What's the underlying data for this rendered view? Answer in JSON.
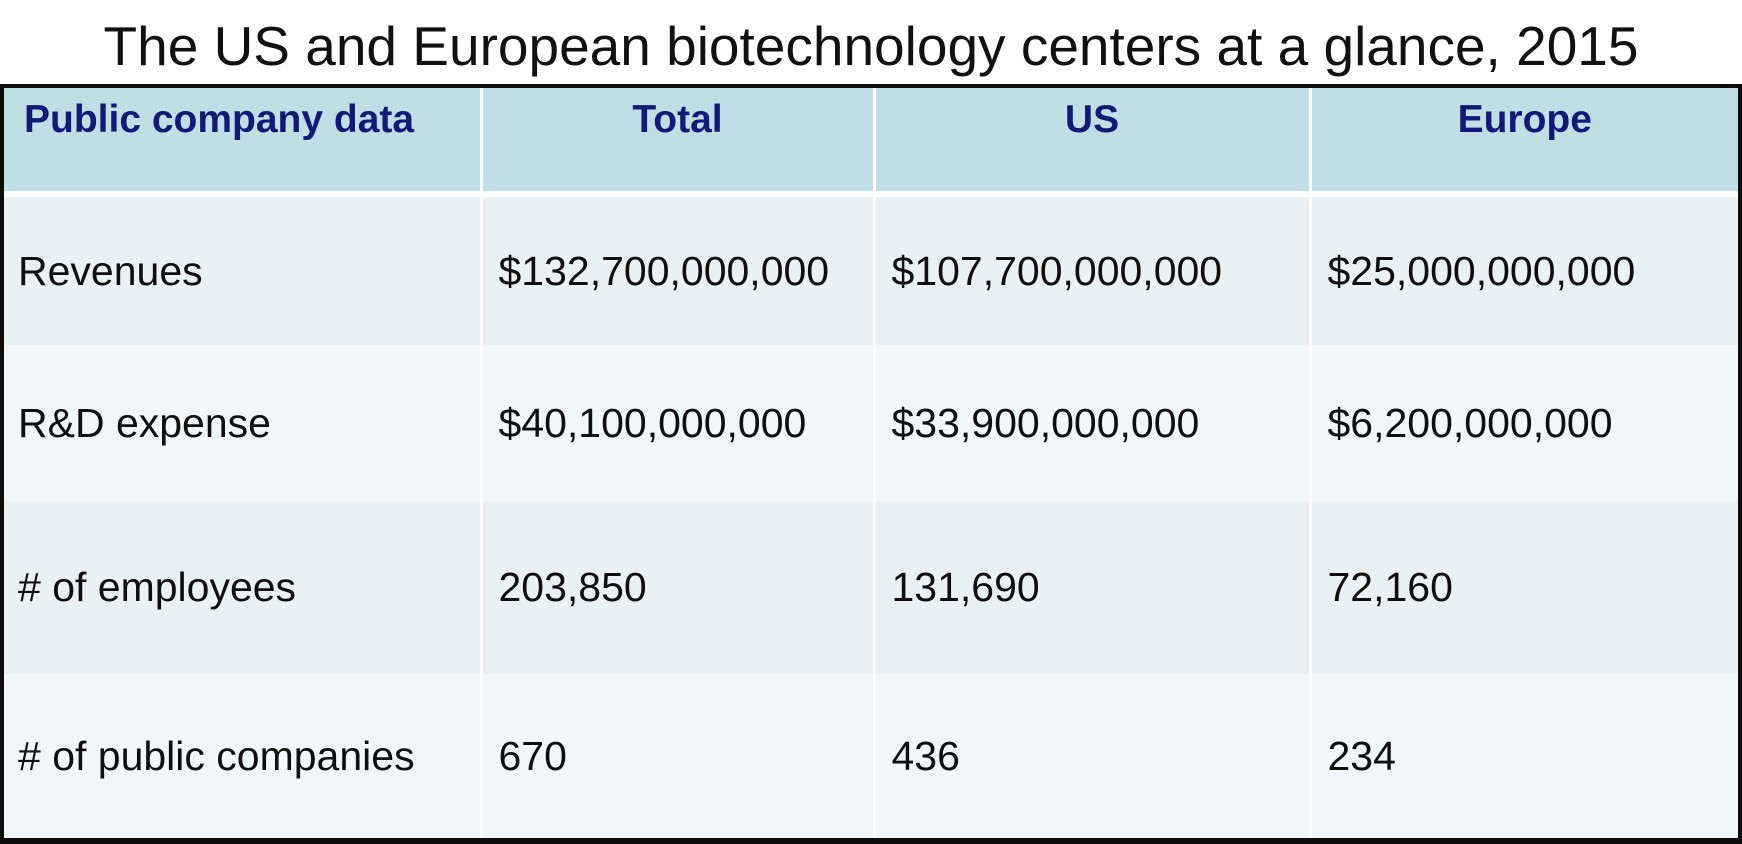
{
  "title": "The US and European biotechnology centers at a glance, 2015",
  "table": {
    "headers": [
      "Public company data",
      "Total",
      "US",
      "Europe"
    ],
    "rows": [
      {
        "label": "Revenues",
        "cells": [
          "$132,700,000,000",
          "$107,700,000,000",
          "$25,000,000,000"
        ]
      },
      {
        "label": "R&D expense",
        "cells": [
          "$40,100,000,000",
          "$33,900,000,000",
          "$6,200,000,000"
        ]
      },
      {
        "label": "# of employees",
        "cells": [
          "203,850",
          "131,690",
          "72,160"
        ]
      },
      {
        "label": "# of public companies",
        "cells": [
          "670",
          "436",
          "234"
        ]
      }
    ]
  },
  "colors": {
    "header_background": "#bfdfe5",
    "header_text": "#111a78",
    "row_background_a": "#e8f1f3",
    "row_background_b": "#f1f7f9",
    "frame_border": "#0d0d0d"
  }
}
